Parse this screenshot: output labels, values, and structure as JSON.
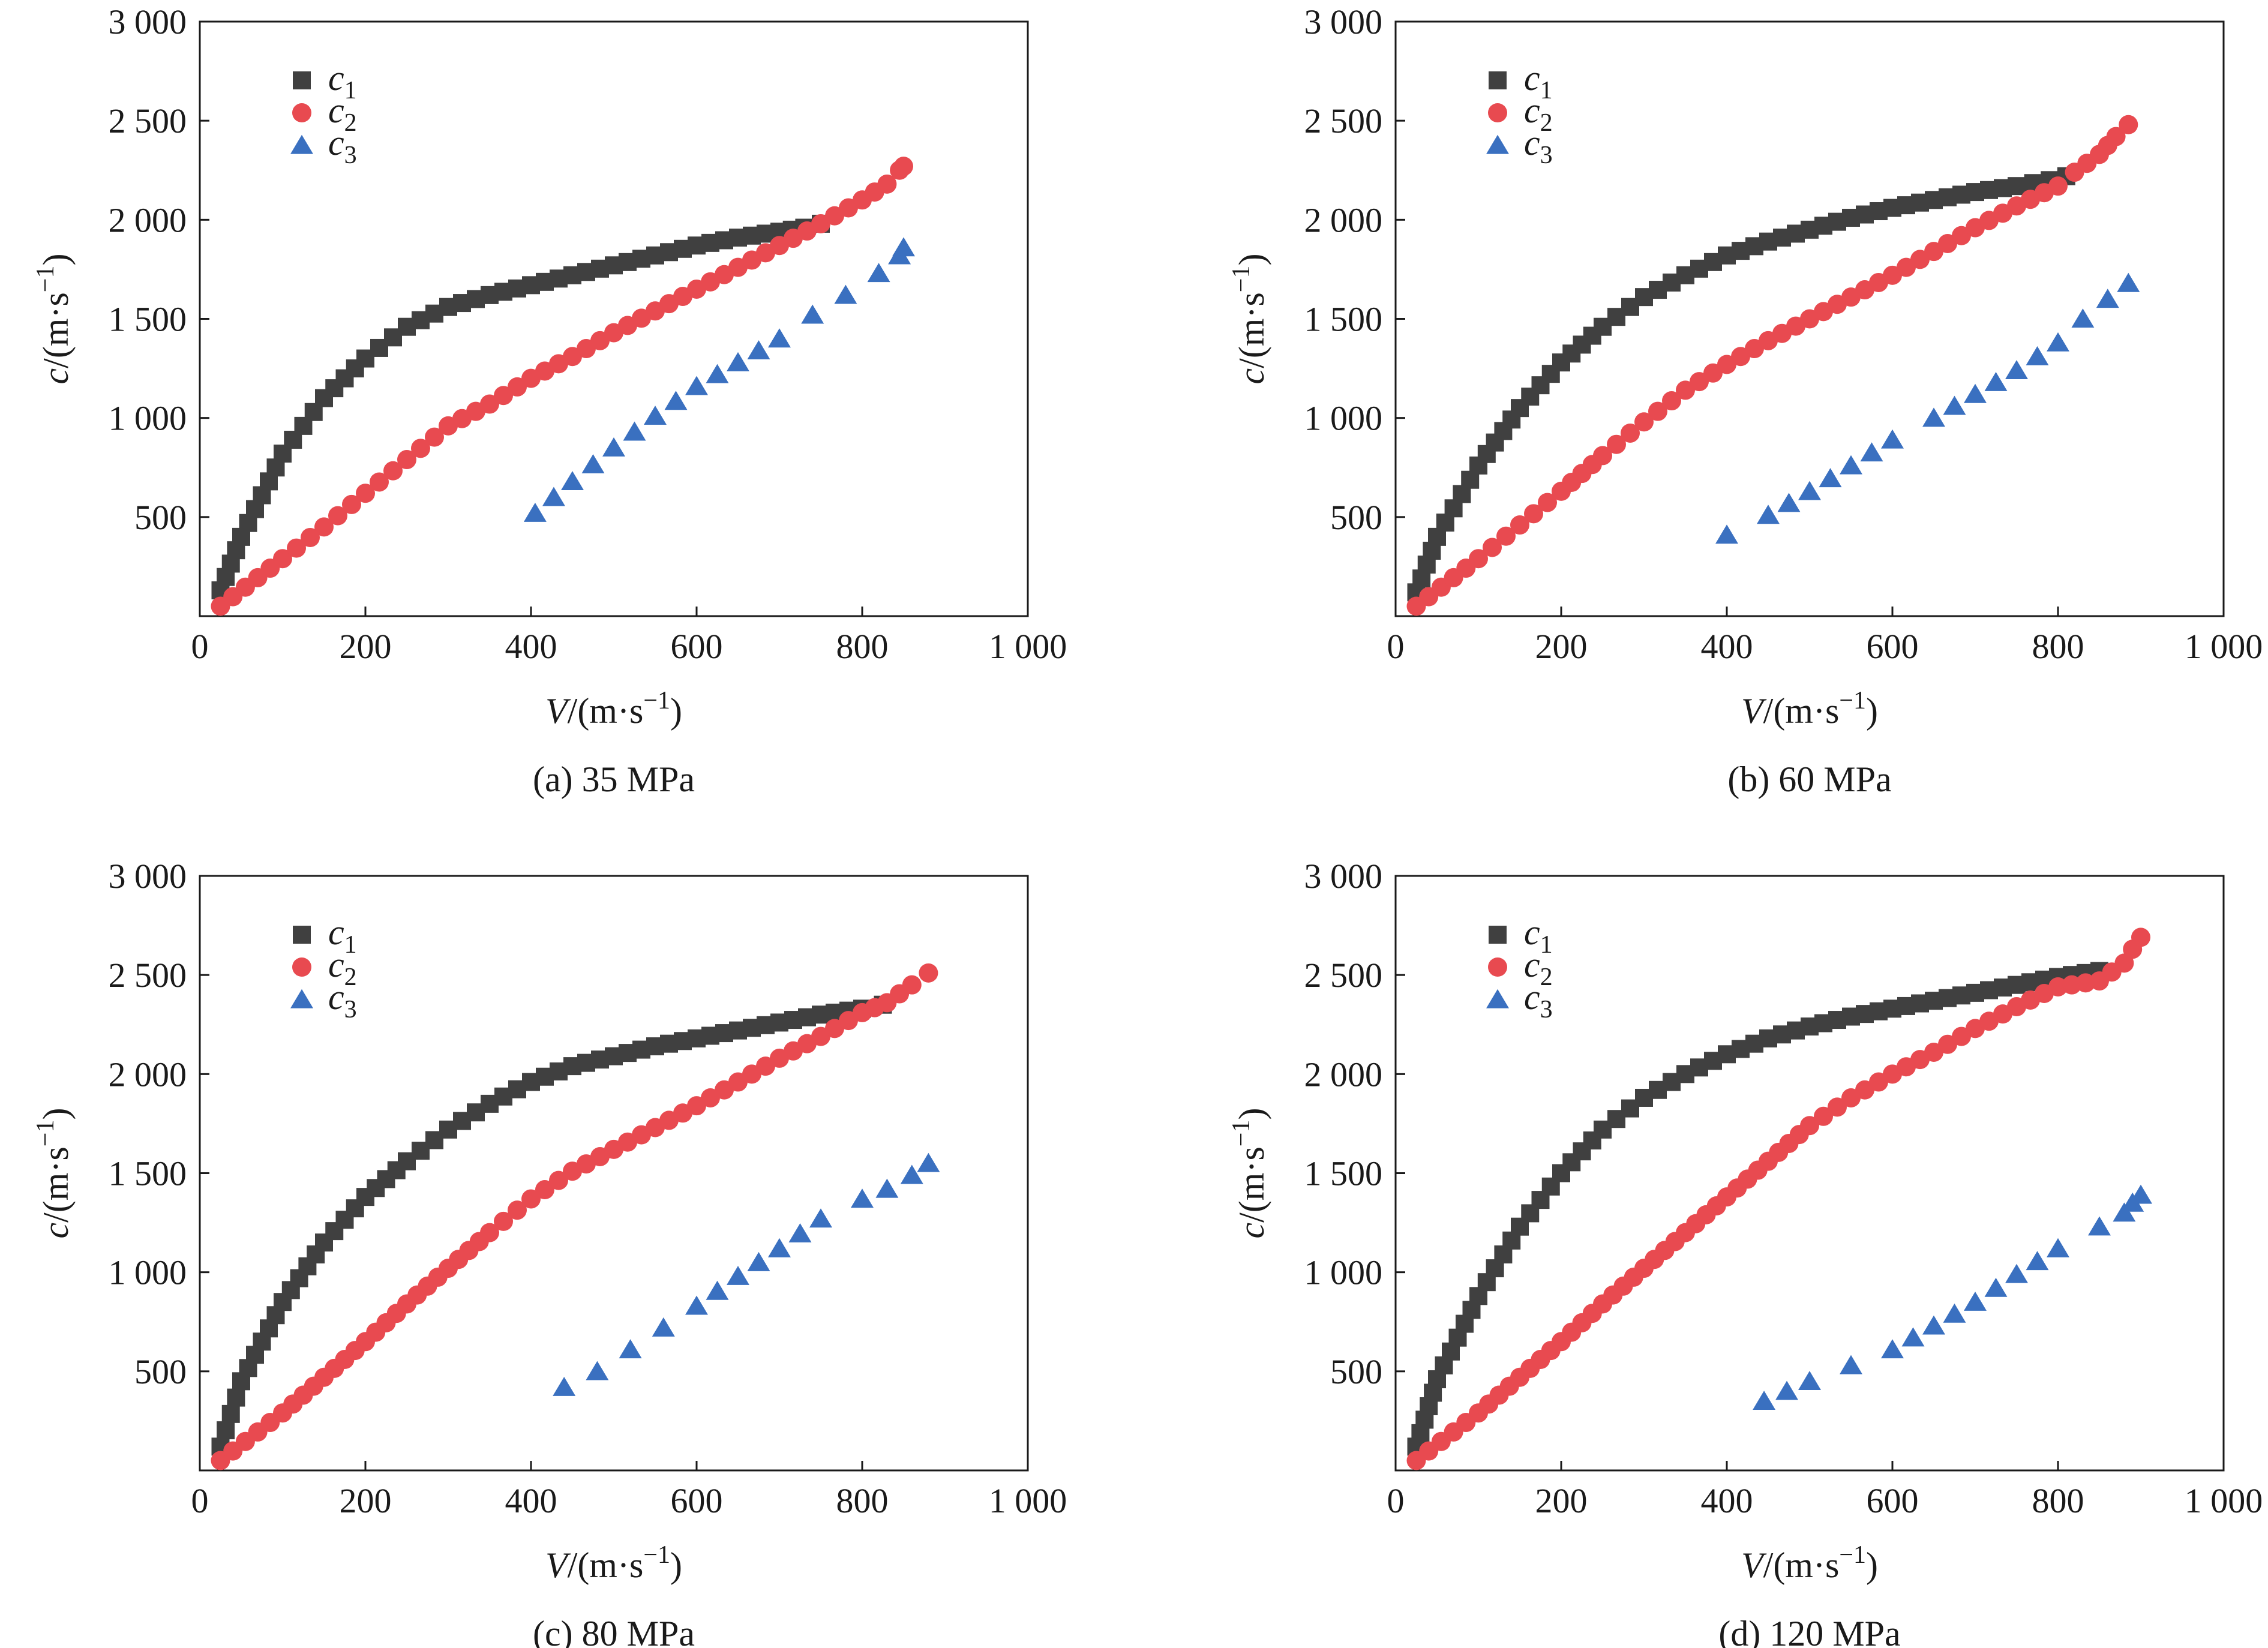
{
  "colors": {
    "c1": "#404040",
    "c2": "#e84a50",
    "c3": "#3a70c0",
    "axis": "#1a1a1a"
  },
  "legend_labels": [
    {
      "name": "c",
      "sub": "1",
      "marker": "square"
    },
    {
      "name": "c",
      "sub": "2",
      "marker": "circle"
    },
    {
      "name": "c",
      "sub": "3",
      "marker": "triangle"
    }
  ],
  "chart_data": [
    {
      "type": "scatter",
      "caption": "(a) 35 MPa",
      "xlabel": {
        "var": "V",
        "unit": "/(m·s",
        "exp": "−1",
        "close": ")"
      },
      "ylabel": {
        "var": "c",
        "unit": "/(m·s",
        "exp": "−1",
        "close": ")"
      },
      "xlim": [
        0,
        1000
      ],
      "ylim": [
        0,
        3000
      ],
      "x_ticks": [
        0,
        200,
        400,
        600,
        800,
        1000
      ],
      "x_tick_labels": [
        "0",
        "200",
        "400",
        "600",
        "800",
        "1 000"
      ],
      "y_ticks": [
        500,
        1000,
        1500,
        2000,
        2500,
        3000
      ],
      "y_tick_labels": [
        "500",
        "1 000",
        "1 500",
        "2 000",
        "2 500",
        "3 000"
      ],
      "legend_position": "top-left",
      "series": [
        {
          "name": "c1",
          "marker": "square",
          "points": [
            [
              25,
              130
            ],
            [
              50,
              400
            ],
            [
              100,
              820
            ],
            [
              150,
              1100
            ],
            [
              200,
              1300
            ],
            [
              250,
              1460
            ],
            [
              300,
              1560
            ],
            [
              350,
              1620
            ],
            [
              400,
              1670
            ],
            [
              450,
              1720
            ],
            [
              500,
              1770
            ],
            [
              550,
              1820
            ],
            [
              600,
              1870
            ],
            [
              650,
              1910
            ],
            [
              700,
              1940
            ],
            [
              730,
              1960
            ],
            [
              750,
              1980
            ]
          ]
        },
        {
          "name": "c2",
          "marker": "circle",
          "points": [
            [
              25,
              50
            ],
            [
              100,
              290
            ],
            [
              150,
              450
            ],
            [
              200,
              620
            ],
            [
              250,
              790
            ],
            [
              300,
              960
            ],
            [
              350,
              1070
            ],
            [
              400,
              1200
            ],
            [
              450,
              1310
            ],
            [
              500,
              1430
            ],
            [
              550,
              1540
            ],
            [
              600,
              1650
            ],
            [
              650,
              1760
            ],
            [
              700,
              1870
            ],
            [
              750,
              1980
            ],
            [
              800,
              2100
            ],
            [
              830,
              2180
            ],
            [
              845,
              2250
            ],
            [
              850,
              2270
            ]
          ]
        },
        {
          "name": "c3",
          "marker": "triangle",
          "points": [
            [
              405,
              520
            ],
            [
              450,
              680
            ],
            [
              500,
              850
            ],
            [
              550,
              1010
            ],
            [
              600,
              1160
            ],
            [
              650,
              1280
            ],
            [
              700,
              1400
            ],
            [
              740,
              1520
            ],
            [
              780,
              1620
            ],
            [
              820,
              1730
            ],
            [
              845,
              1820
            ],
            [
              850,
              1860
            ]
          ]
        }
      ]
    },
    {
      "type": "scatter",
      "caption": "(b) 60 MPa",
      "xlabel": {
        "var": "V",
        "unit": "/(m·s",
        "exp": "−1",
        "close": ")"
      },
      "ylabel": {
        "var": "c",
        "unit": "/(m·s",
        "exp": "−1",
        "close": ")"
      },
      "xlim": [
        0,
        1000
      ],
      "ylim": [
        0,
        3000
      ],
      "x_ticks": [
        0,
        200,
        400,
        600,
        800,
        1000
      ],
      "x_tick_labels": [
        "0",
        "200",
        "400",
        "600",
        "800",
        "1 000"
      ],
      "y_ticks": [
        500,
        1000,
        1500,
        2000,
        2500,
        3000
      ],
      "y_tick_labels": [
        "500",
        "1 000",
        "1 500",
        "2 000",
        "2 500",
        "3 000"
      ],
      "legend_position": "top-left",
      "series": [
        {
          "name": "c1",
          "marker": "square",
          "points": [
            [
              25,
              120
            ],
            [
              50,
              400
            ],
            [
              100,
              760
            ],
            [
              150,
              1050
            ],
            [
              200,
              1280
            ],
            [
              250,
              1460
            ],
            [
              300,
              1610
            ],
            [
              350,
              1720
            ],
            [
              400,
              1820
            ],
            [
              450,
              1890
            ],
            [
              500,
              1950
            ],
            [
              550,
              2010
            ],
            [
              600,
              2060
            ],
            [
              650,
              2100
            ],
            [
              700,
              2140
            ],
            [
              750,
              2170
            ],
            [
              790,
              2200
            ],
            [
              810,
              2220
            ]
          ]
        },
        {
          "name": "c2",
          "marker": "circle",
          "points": [
            [
              25,
              50
            ],
            [
              100,
              290
            ],
            [
              150,
              460
            ],
            [
              200,
              630
            ],
            [
              250,
              810
            ],
            [
              300,
              980
            ],
            [
              350,
              1140
            ],
            [
              400,
              1270
            ],
            [
              450,
              1390
            ],
            [
              500,
              1500
            ],
            [
              550,
              1610
            ],
            [
              600,
              1720
            ],
            [
              650,
              1840
            ],
            [
              700,
              1960
            ],
            [
              750,
              2070
            ],
            [
              800,
              2170
            ],
            [
              820,
              2240
            ],
            [
              850,
              2330
            ],
            [
              870,
              2420
            ],
            [
              885,
              2480
            ]
          ]
        },
        {
          "name": "c3",
          "marker": "triangle",
          "points": [
            [
              400,
              410
            ],
            [
              450,
              510
            ],
            [
              500,
              630
            ],
            [
              550,
              760
            ],
            [
              600,
              890
            ],
            [
              650,
              1000
            ],
            [
              700,
              1120
            ],
            [
              750,
              1240
            ],
            [
              800,
              1380
            ],
            [
              830,
              1500
            ],
            [
              860,
              1600
            ],
            [
              885,
              1680
            ]
          ]
        }
      ]
    },
    {
      "type": "scatter",
      "caption": "(c) 80 MPa",
      "xlabel": {
        "var": "V",
        "unit": "/(m·s",
        "exp": "−1",
        "close": ")"
      },
      "ylabel": {
        "var": "c",
        "unit": "/(m·s",
        "exp": "−1",
        "close": ")"
      },
      "xlim": [
        0,
        1000
      ],
      "ylim": [
        0,
        3000
      ],
      "x_ticks": [
        0,
        200,
        400,
        600,
        800,
        1000
      ],
      "x_tick_labels": [
        "0",
        "200",
        "400",
        "600",
        "800",
        "1 000"
      ],
      "y_ticks": [
        500,
        1000,
        1500,
        2000,
        2500,
        3000
      ],
      "y_tick_labels": [
        "500",
        "1 000",
        "1 500",
        "2 000",
        "2 500",
        "3 000"
      ],
      "legend_position": "top-left",
      "series": [
        {
          "name": "c1",
          "marker": "square",
          "points": [
            [
              25,
              120
            ],
            [
              50,
              450
            ],
            [
              100,
              850
            ],
            [
              150,
              1150
            ],
            [
              200,
              1380
            ],
            [
              250,
              1560
            ],
            [
              300,
              1720
            ],
            [
              350,
              1850
            ],
            [
              400,
              1960
            ],
            [
              450,
              2040
            ],
            [
              500,
              2090
            ],
            [
              550,
              2140
            ],
            [
              600,
              2180
            ],
            [
              650,
              2220
            ],
            [
              700,
              2260
            ],
            [
              750,
              2300
            ],
            [
              800,
              2330
            ],
            [
              825,
              2350
            ]
          ]
        },
        {
          "name": "c2",
          "marker": "circle",
          "points": [
            [
              25,
              50
            ],
            [
              100,
              290
            ],
            [
              150,
              470
            ],
            [
              200,
              650
            ],
            [
              250,
              840
            ],
            [
              300,
              1020
            ],
            [
              350,
              1200
            ],
            [
              400,
              1370
            ],
            [
              450,
              1510
            ],
            [
              500,
              1620
            ],
            [
              550,
              1730
            ],
            [
              600,
              1840
            ],
            [
              650,
              1960
            ],
            [
              700,
              2080
            ],
            [
              750,
              2190
            ],
            [
              800,
              2310
            ],
            [
              830,
              2360
            ],
            [
              860,
              2450
            ],
            [
              880,
              2510
            ]
          ]
        },
        {
          "name": "c3",
          "marker": "triangle",
          "points": [
            [
              440,
              420
            ],
            [
              480,
              500
            ],
            [
              520,
              610
            ],
            [
              560,
              720
            ],
            [
              600,
              830
            ],
            [
              650,
              980
            ],
            [
              700,
              1120
            ],
            [
              750,
              1270
            ],
            [
              800,
              1370
            ],
            [
              830,
              1420
            ],
            [
              860,
              1490
            ],
            [
              880,
              1550
            ]
          ]
        }
      ]
    },
    {
      "type": "scatter",
      "caption": "(d) 120 MPa",
      "xlabel": {
        "var": "V",
        "unit": "/(m·s",
        "exp": "−1",
        "close": ")"
      },
      "ylabel": {
        "var": "c",
        "unit": "/(m·s",
        "exp": "−1",
        "close": ")"
      },
      "xlim": [
        0,
        1000
      ],
      "ylim": [
        0,
        3000
      ],
      "x_ticks": [
        0,
        200,
        400,
        600,
        800,
        1000
      ],
      "x_tick_labels": [
        "0",
        "200",
        "400",
        "600",
        "800",
        "1 000"
      ],
      "y_ticks": [
        500,
        1000,
        1500,
        2000,
        2500,
        3000
      ],
      "y_tick_labels": [
        "500",
        "1 000",
        "1 500",
        "2 000",
        "2 500",
        "3 000"
      ],
      "legend_position": "top-left",
      "series": [
        {
          "name": "c1",
          "marker": "square",
          "points": [
            [
              25,
              120
            ],
            [
              50,
              460
            ],
            [
              100,
              880
            ],
            [
              150,
              1230
            ],
            [
              200,
              1500
            ],
            [
              250,
              1720
            ],
            [
              300,
              1880
            ],
            [
              350,
              2000
            ],
            [
              400,
              2100
            ],
            [
              450,
              2180
            ],
            [
              500,
              2240
            ],
            [
              550,
              2290
            ],
            [
              600,
              2330
            ],
            [
              650,
              2370
            ],
            [
              700,
              2410
            ],
            [
              750,
              2450
            ],
            [
              800,
              2490
            ],
            [
              850,
              2520
            ]
          ]
        },
        {
          "name": "c2",
          "marker": "circle",
          "points": [
            [
              25,
              50
            ],
            [
              100,
              290
            ],
            [
              150,
              470
            ],
            [
              200,
              650
            ],
            [
              250,
              840
            ],
            [
              300,
              1020
            ],
            [
              350,
              1200
            ],
            [
              400,
              1380
            ],
            [
              450,
              1560
            ],
            [
              500,
              1740
            ],
            [
              550,
              1880
            ],
            [
              600,
              2000
            ],
            [
              650,
              2110
            ],
            [
              700,
              2230
            ],
            [
              750,
              2340
            ],
            [
              800,
              2440
            ],
            [
              850,
              2470
            ],
            [
              880,
              2560
            ],
            [
              890,
              2630
            ],
            [
              900,
              2690
            ]
          ]
        },
        {
          "name": "c3",
          "marker": "triangle",
          "points": [
            [
              445,
              350
            ],
            [
              500,
              450
            ],
            [
              550,
              530
            ],
            [
              600,
              610
            ],
            [
              650,
              730
            ],
            [
              700,
              850
            ],
            [
              750,
              990
            ],
            [
              800,
              1120
            ],
            [
              850,
              1230
            ],
            [
              880,
              1300
            ],
            [
              890,
              1350
            ],
            [
              900,
              1390
            ]
          ]
        }
      ]
    }
  ]
}
